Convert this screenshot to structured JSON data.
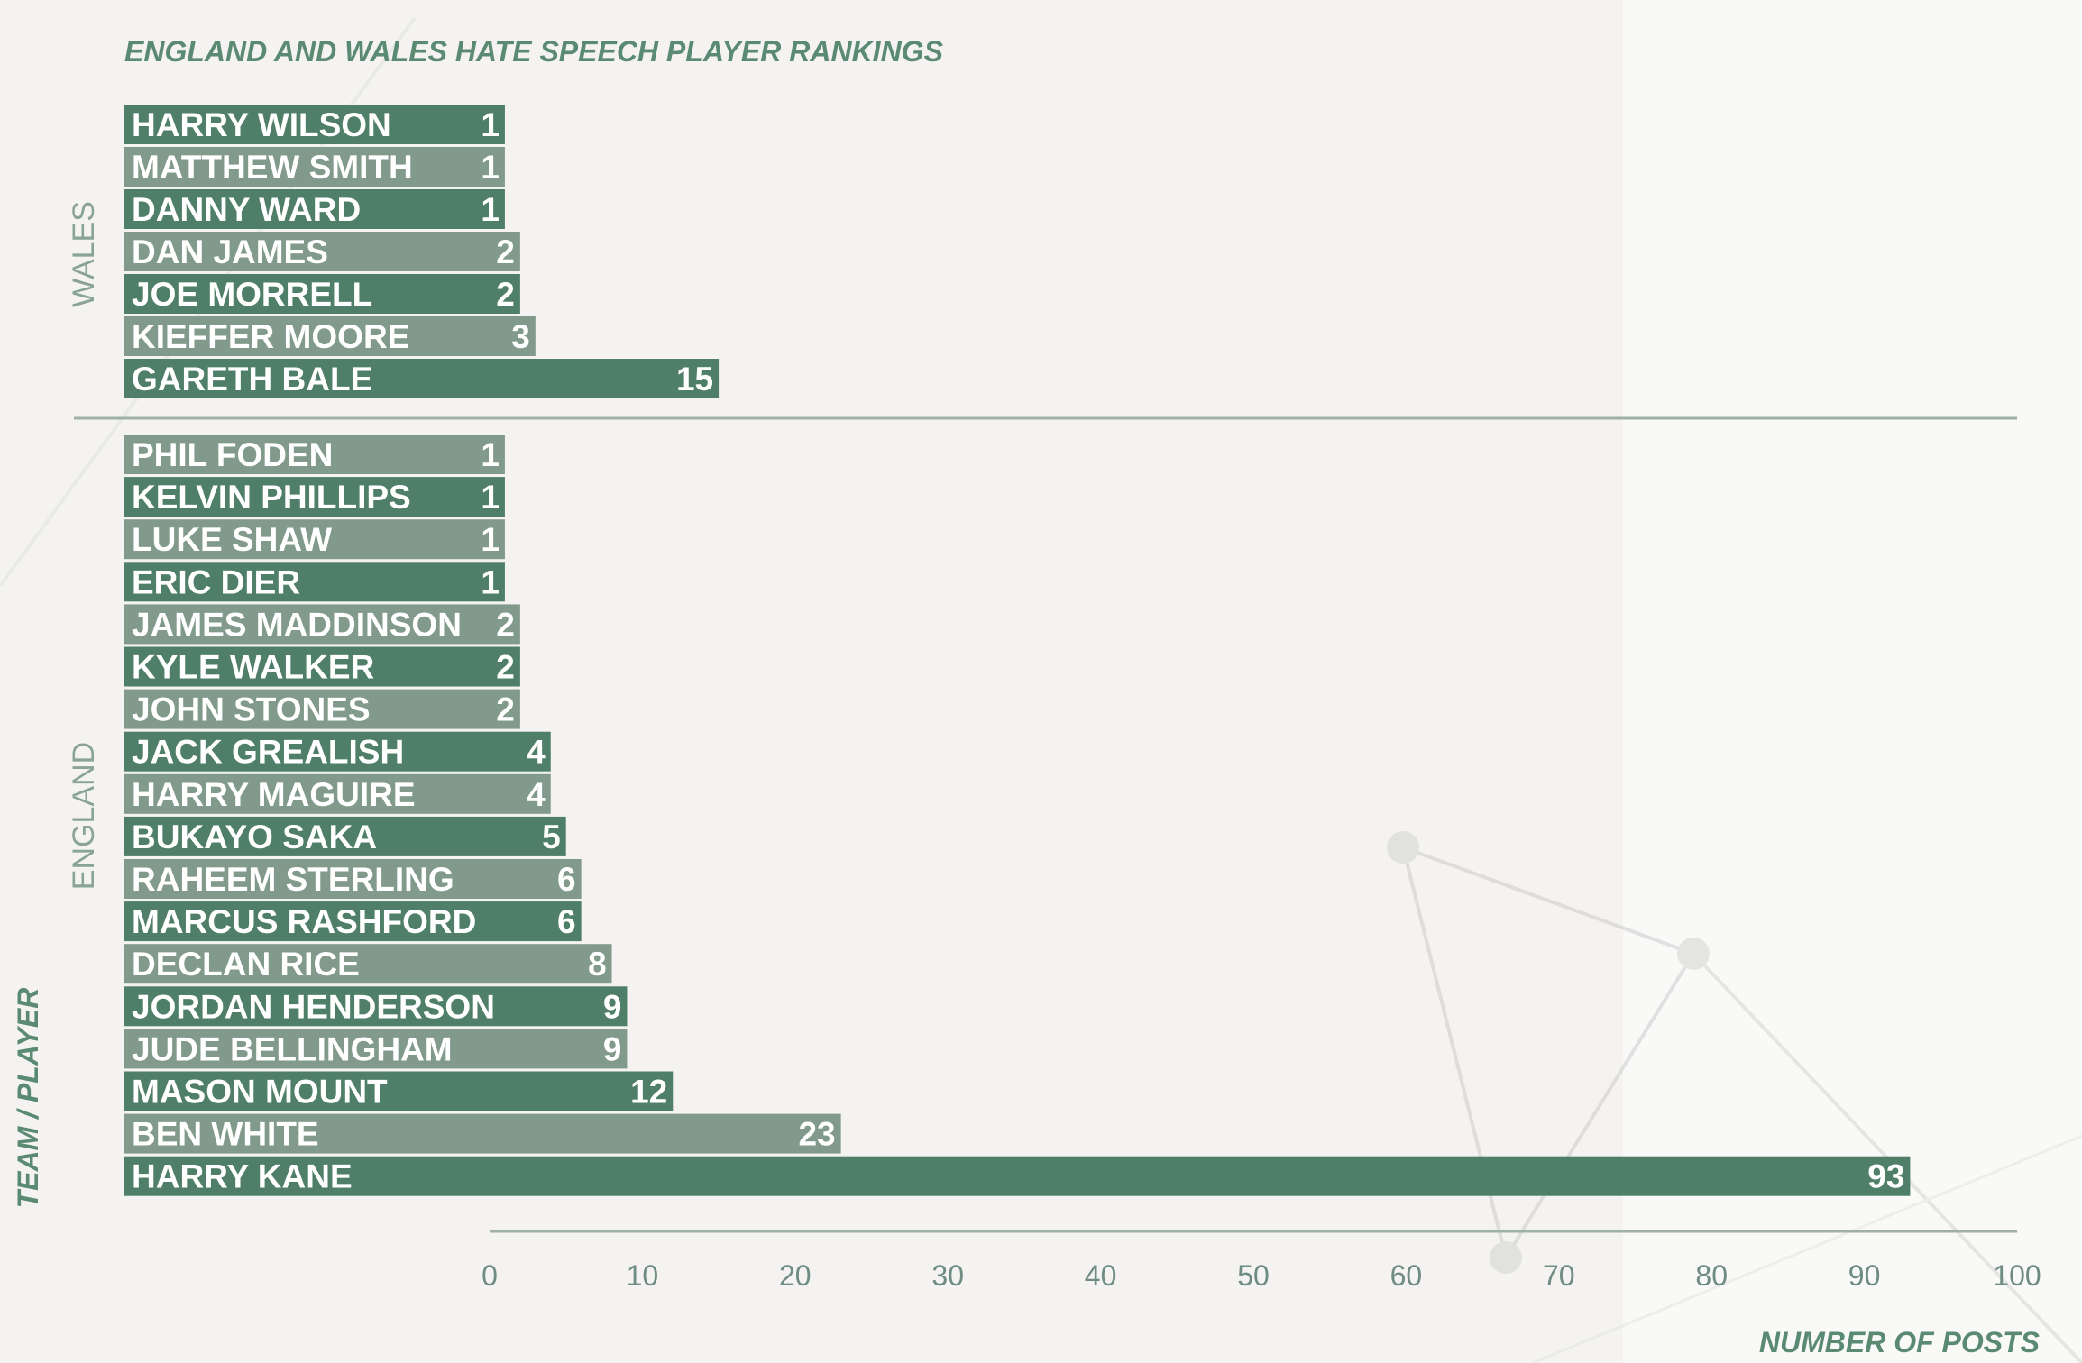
{
  "chart_data": {
    "type": "bar",
    "orientation": "horizontal",
    "title": "ENGLAND AND WALES HATE SPEECH PLAYER RANKINGS",
    "xlabel": "NUMBER OF POSTS",
    "ylabel": "TEAM / PLAYER",
    "xlim": [
      0,
      100
    ],
    "xticks": [
      0,
      10,
      20,
      30,
      40,
      50,
      60,
      70,
      80,
      90,
      100
    ],
    "colors": {
      "dark_bar": "#4f7f69",
      "light_bar": "#829a8c",
      "text_accent": "#5b8a73",
      "group_text": "#8aa399"
    },
    "groups": [
      {
        "name": "WALES",
        "players": [
          {
            "name": "HARRY WILSON",
            "value": 1
          },
          {
            "name": "MATTHEW SMITH",
            "value": 1
          },
          {
            "name": "DANNY WARD",
            "value": 1
          },
          {
            "name": "DAN JAMES",
            "value": 2
          },
          {
            "name": "JOE MORRELL",
            "value": 2
          },
          {
            "name": "KIEFFER MOORE",
            "value": 3
          },
          {
            "name": "GARETH BALE",
            "value": 15
          }
        ]
      },
      {
        "name": "ENGLAND",
        "players": [
          {
            "name": "PHIL FODEN",
            "value": 1
          },
          {
            "name": "KELVIN PHILLIPS",
            "value": 1
          },
          {
            "name": "LUKE SHAW",
            "value": 1
          },
          {
            "name": "ERIC DIER",
            "value": 1
          },
          {
            "name": "JAMES MADDINSON",
            "value": 2
          },
          {
            "name": "KYLE WALKER",
            "value": 2
          },
          {
            "name": "JOHN STONES",
            "value": 2
          },
          {
            "name": "JACK GREALISH",
            "value": 4
          },
          {
            "name": "HARRY MAGUIRE",
            "value": 4
          },
          {
            "name": "BUKAYO SAKA",
            "value": 5
          },
          {
            "name": "RAHEEM STERLING",
            "value": 6
          },
          {
            "name": "MARCUS RASHFORD",
            "value": 6
          },
          {
            "name": "DECLAN RICE",
            "value": 8
          },
          {
            "name": "JORDAN HENDERSON",
            "value": 9
          },
          {
            "name": "JUDE BELLINGHAM",
            "value": 9
          },
          {
            "name": "MASON MOUNT",
            "value": 12
          },
          {
            "name": "BEN WHITE",
            "value": 23
          },
          {
            "name": "HARRY KANE",
            "value": 93
          }
        ]
      }
    ]
  }
}
